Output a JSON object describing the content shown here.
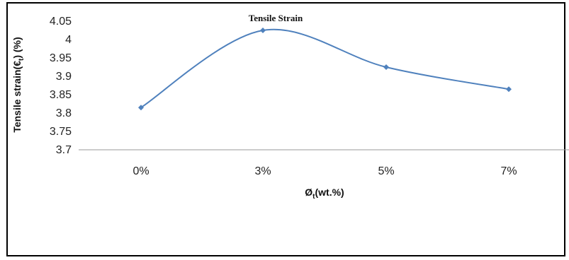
{
  "chart_data": {
    "type": "line",
    "title": "Tensile Strain",
    "xlabel_main": "Ø",
    "xlabel_sub": "t",
    "xlabel_tail": "(wt.%)",
    "ylabel_main": "Tensile strain(€",
    "ylabel_sub": "t",
    "ylabel_tail": ") (%)",
    "categories": [
      "0%",
      "3%",
      "5%",
      "7%"
    ],
    "series": [
      {
        "values": [
          3.815,
          4.025,
          3.925,
          3.865
        ]
      }
    ],
    "ylim": [
      3.7,
      4.05
    ],
    "yticks": [
      "3.7",
      "3.75",
      "3.8",
      "3.85",
      "3.9",
      "3.95",
      "4",
      "4.05"
    ],
    "grid": false,
    "line_color": "#4f81bd"
  }
}
